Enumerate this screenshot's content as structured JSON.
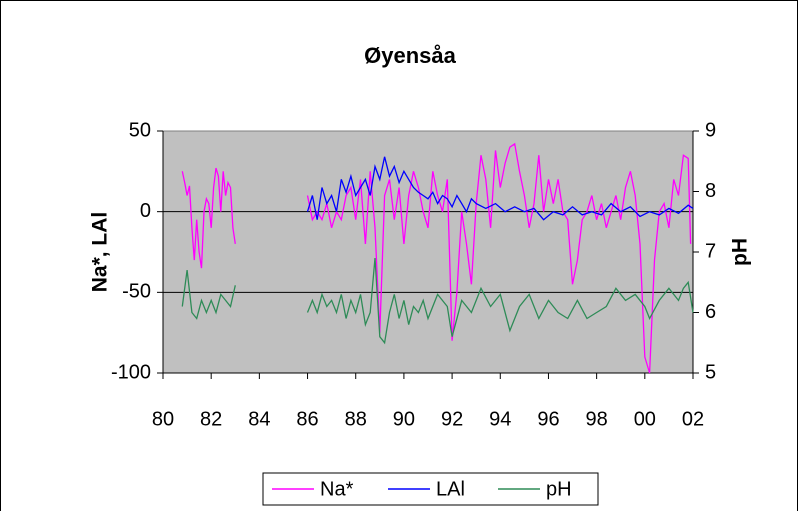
{
  "chart_data": {
    "type": "line",
    "title": "Øyensåa",
    "y_label": "Na*, LAl",
    "y2_label": "pH",
    "xlim": [
      80,
      102
    ],
    "xticks": [
      80,
      82,
      84,
      86,
      88,
      90,
      92,
      94,
      96,
      98,
      {
        "value": 100,
        "label": "00"
      },
      {
        "value": 102,
        "label": "02"
      }
    ],
    "ylim": [
      -100,
      50
    ],
    "yticks": [
      -100,
      -50,
      0,
      50
    ],
    "y2lim": [
      5,
      9
    ],
    "y2ticks": [
      5,
      6,
      7,
      8,
      9
    ],
    "grid": true,
    "legend": "bottom",
    "series": [
      {
        "name": "Na*",
        "color": "#ff00ff",
        "x": [
          80.8,
          80.9,
          81.0,
          81.1,
          81.2,
          81.3,
          81.4,
          81.5,
          81.6,
          81.7,
          81.8,
          81.9,
          82.0,
          82.1,
          82.2,
          82.3,
          82.4,
          82.5,
          82.6,
          82.7,
          82.8,
          82.9,
          83.0,
          84.5,
          86.0,
          86.2,
          86.4,
          86.6,
          86.8,
          87.0,
          87.2,
          87.4,
          87.6,
          87.8,
          88.0,
          88.2,
          88.4,
          88.6,
          88.8,
          89.0,
          89.2,
          89.4,
          89.6,
          89.8,
          90.0,
          90.2,
          90.4,
          90.6,
          90.8,
          91.0,
          91.2,
          91.4,
          91.6,
          91.8,
          92.0,
          92.2,
          92.4,
          92.6,
          92.8,
          93.0,
          93.2,
          93.4,
          93.6,
          93.8,
          94.0,
          94.2,
          94.4,
          94.6,
          94.8,
          95.0,
          95.2,
          95.4,
          95.6,
          95.8,
          96.0,
          96.2,
          96.4,
          96.6,
          96.8,
          97.0,
          97.2,
          97.4,
          97.6,
          97.8,
          98.0,
          98.2,
          98.4,
          98.6,
          98.8,
          99.0,
          99.2,
          99.4,
          99.6,
          99.8,
          100.0,
          100.2,
          100.4,
          100.6,
          100.8,
          101.0,
          101.2,
          101.4,
          101.6,
          101.8,
          101.9
        ],
        "values": [
          25,
          18,
          10,
          16,
          -10,
          -30,
          -5,
          -25,
          -35,
          0,
          8,
          5,
          -10,
          15,
          27,
          22,
          0,
          25,
          10,
          18,
          15,
          -10,
          -20,
          null,
          10,
          -5,
          0,
          -5,
          5,
          -10,
          0,
          -5,
          10,
          15,
          -5,
          20,
          -20,
          25,
          -10,
          -75,
          10,
          20,
          -5,
          15,
          -20,
          10,
          25,
          15,
          0,
          -10,
          25,
          10,
          0,
          20,
          -80,
          -50,
          0,
          -20,
          -45,
          5,
          35,
          20,
          -10,
          38,
          15,
          30,
          40,
          42,
          25,
          10,
          -10,
          5,
          35,
          0,
          20,
          5,
          20,
          0,
          -5,
          -45,
          -30,
          -5,
          0,
          10,
          -5,
          5,
          -10,
          0,
          10,
          -5,
          15,
          25,
          10,
          -20,
          -90,
          -100,
          -30,
          0,
          5,
          -10,
          20,
          10,
          35,
          33,
          -20
        ]
      },
      {
        "name": "LAl",
        "color": "#0000ff",
        "x": [
          86.0,
          86.2,
          86.4,
          86.6,
          86.8,
          87.0,
          87.2,
          87.4,
          87.6,
          87.8,
          88.0,
          88.2,
          88.4,
          88.6,
          88.8,
          89.0,
          89.2,
          89.4,
          89.6,
          89.8,
          90.0,
          90.2,
          90.4,
          90.6,
          90.8,
          91.0,
          91.2,
          91.4,
          91.6,
          91.8,
          92.0,
          92.2,
          92.4,
          92.6,
          92.8,
          93.0,
          93.4,
          93.8,
          94.2,
          94.6,
          95.0,
          95.4,
          95.8,
          96.2,
          96.6,
          97.0,
          97.4,
          97.8,
          98.2,
          98.6,
          99.0,
          99.4,
          99.8,
          100.2,
          100.6,
          101.0,
          101.4,
          101.8,
          102.0
        ],
        "values": [
          0,
          10,
          -5,
          15,
          5,
          10,
          0,
          20,
          12,
          22,
          10,
          15,
          20,
          10,
          28,
          20,
          34,
          22,
          28,
          18,
          25,
          20,
          15,
          12,
          10,
          8,
          12,
          5,
          10,
          8,
          3,
          10,
          5,
          0,
          8,
          5,
          2,
          5,
          0,
          3,
          0,
          2,
          -5,
          0,
          -2,
          3,
          -2,
          0,
          -2,
          5,
          0,
          3,
          -3,
          0,
          -2,
          2,
          -1,
          4,
          2
        ]
      },
      {
        "name": "pH",
        "color": "#2e8b57",
        "axis": "y2",
        "x": [
          80.8,
          81.0,
          81.2,
          81.4,
          81.6,
          81.8,
          82.0,
          82.2,
          82.4,
          82.6,
          82.8,
          83.0,
          84.5,
          86.0,
          86.2,
          86.4,
          86.6,
          86.8,
          87.0,
          87.2,
          87.4,
          87.6,
          87.8,
          88.0,
          88.2,
          88.4,
          88.6,
          88.8,
          89.0,
          89.2,
          89.4,
          89.6,
          89.8,
          90.0,
          90.2,
          90.4,
          90.6,
          90.8,
          91.0,
          91.4,
          91.8,
          92.0,
          92.4,
          92.8,
          93.2,
          93.6,
          94.0,
          94.4,
          94.8,
          95.2,
          95.6,
          96.0,
          96.4,
          96.8,
          97.2,
          97.6,
          98.0,
          98.4,
          98.8,
          99.2,
          99.6,
          100.0,
          100.2,
          100.6,
          101.0,
          101.4,
          101.6,
          101.8,
          102.0
        ],
        "values": [
          6.1,
          6.7,
          6.0,
          5.9,
          6.2,
          6.0,
          6.2,
          6.0,
          6.3,
          6.2,
          6.1,
          6.45,
          null,
          6.0,
          6.2,
          6.0,
          6.3,
          6.1,
          6.2,
          6.0,
          6.3,
          5.9,
          6.2,
          6.0,
          6.3,
          5.8,
          6.0,
          6.9,
          5.6,
          5.5,
          6.0,
          6.3,
          5.9,
          6.2,
          5.8,
          6.1,
          6.0,
          6.2,
          5.9,
          6.3,
          6.1,
          5.6,
          6.2,
          6.0,
          6.4,
          6.1,
          6.3,
          5.7,
          6.1,
          6.3,
          5.9,
          6.2,
          6.0,
          5.9,
          6.2,
          5.9,
          6.0,
          6.1,
          6.4,
          6.2,
          6.3,
          6.1,
          5.9,
          6.2,
          6.4,
          6.2,
          6.4,
          6.5,
          6.0
        ]
      }
    ]
  }
}
